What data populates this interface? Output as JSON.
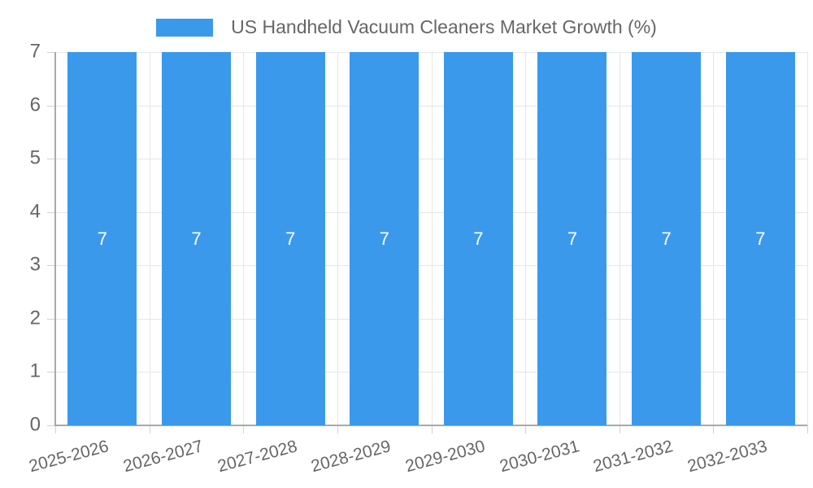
{
  "chart_data": {
    "type": "bar",
    "title": "US Handheld Vacuum Cleaners Market Growth (%)",
    "legend": {
      "label": "US Handheld Vacuum Cleaners Market Growth (%)",
      "position": "top"
    },
    "categories": [
      "2025-2026",
      "2026-2027",
      "2027-2028",
      "2028-2029",
      "2029-2030",
      "2030-2031",
      "2031-2032",
      "2032-2033"
    ],
    "values": [
      7,
      7,
      7,
      7,
      7,
      7,
      7,
      7
    ],
    "bar_labels": [
      "7",
      "7",
      "7",
      "7",
      "7",
      "7",
      "7",
      "7"
    ],
    "xlabel": "",
    "ylabel": "",
    "ylim": [
      0,
      7
    ],
    "yticks": [
      0,
      1,
      2,
      3,
      4,
      5,
      6,
      7
    ],
    "grid": true,
    "colors": {
      "bar": "#3b99ec",
      "bar_label": "#ffffff",
      "axis_text": "#666666",
      "grid_line": "#e6e6e6",
      "tick_line": "#d2d2d2",
      "axis_line": "#a9a9a9",
      "background": "#ffffff"
    }
  }
}
